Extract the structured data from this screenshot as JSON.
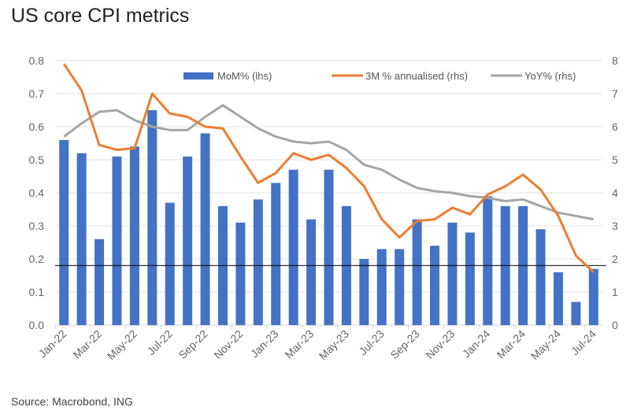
{
  "title": "US core CPI metrics",
  "source": "Source: Macrobond, ING",
  "chart_data": {
    "type": "bar+line",
    "title": "US core CPI metrics",
    "categories": [
      "Jan-22",
      "Feb-22",
      "Mar-22",
      "Apr-22",
      "May-22",
      "Jun-22",
      "Jul-22",
      "Aug-22",
      "Sep-22",
      "Oct-22",
      "Nov-22",
      "Dec-22",
      "Jan-23",
      "Feb-23",
      "Mar-23",
      "Apr-23",
      "May-23",
      "Jun-23",
      "Jul-23",
      "Aug-23",
      "Sep-23",
      "Oct-23",
      "Nov-23",
      "Dec-23",
      "Jan-24",
      "Feb-24",
      "Mar-24",
      "Apr-24",
      "May-24",
      "Jun-24",
      "Jul-24"
    ],
    "x_tick_labels": [
      "Jan-22",
      "Mar-22",
      "May-22",
      "Jul-22",
      "Sep-22",
      "Nov-22",
      "Jan-23",
      "Mar-23",
      "May-23",
      "Jul-23",
      "Sep-23",
      "Nov-23",
      "Jan-24",
      "Mar-24",
      "May-24",
      "Jul-24"
    ],
    "left_axis": {
      "ylim": [
        0,
        0.8
      ],
      "ticks": [
        "0.0",
        "0.1",
        "0.2",
        "0.3",
        "0.4",
        "0.5",
        "0.6",
        "0.7",
        "0.8"
      ]
    },
    "right_axis": {
      "ylim": [
        0,
        8
      ],
      "ticks": [
        "0",
        "1",
        "2",
        "3",
        "4",
        "5",
        "6",
        "7",
        "8"
      ]
    },
    "series": [
      {
        "name": "MoM% (lhs)",
        "type": "bar",
        "axis": "left",
        "color": "#4472C4",
        "values": [
          0.56,
          0.52,
          0.26,
          0.51,
          0.54,
          0.65,
          0.37,
          0.51,
          0.58,
          0.36,
          0.31,
          0.38,
          0.43,
          0.47,
          0.32,
          0.47,
          0.36,
          0.2,
          0.23,
          0.23,
          0.32,
          0.24,
          0.31,
          0.28,
          0.39,
          0.36,
          0.36,
          0.29,
          0.16,
          0.07,
          0.17
        ]
      },
      {
        "name": "3M % annualised (rhs)",
        "type": "line",
        "axis": "right",
        "color": "#ED7D31",
        "values": [
          7.9,
          7.1,
          5.45,
          5.3,
          5.35,
          7.0,
          6.4,
          6.3,
          6.0,
          5.95,
          5.1,
          4.3,
          4.6,
          5.2,
          5.0,
          5.15,
          4.75,
          4.2,
          3.2,
          2.65,
          3.15,
          3.2,
          3.55,
          3.35,
          3.95,
          4.2,
          4.55,
          4.1,
          3.3,
          2.1,
          1.6
        ]
      },
      {
        "name": "YoY% (rhs)",
        "type": "line",
        "axis": "right",
        "color": "#A5A5A5",
        "values": [
          5.7,
          6.1,
          6.45,
          6.5,
          6.2,
          6.0,
          5.9,
          5.9,
          6.3,
          6.65,
          6.3,
          5.95,
          5.7,
          5.55,
          5.5,
          5.55,
          5.3,
          4.85,
          4.7,
          4.4,
          4.15,
          4.05,
          4.0,
          3.9,
          3.85,
          3.75,
          3.8,
          3.6,
          3.4,
          3.3,
          3.2
        ]
      }
    ],
    "reference_line": {
      "axis": "left",
      "value": 0.18,
      "color": "#000000"
    },
    "grid": true,
    "legend": "top-right"
  }
}
